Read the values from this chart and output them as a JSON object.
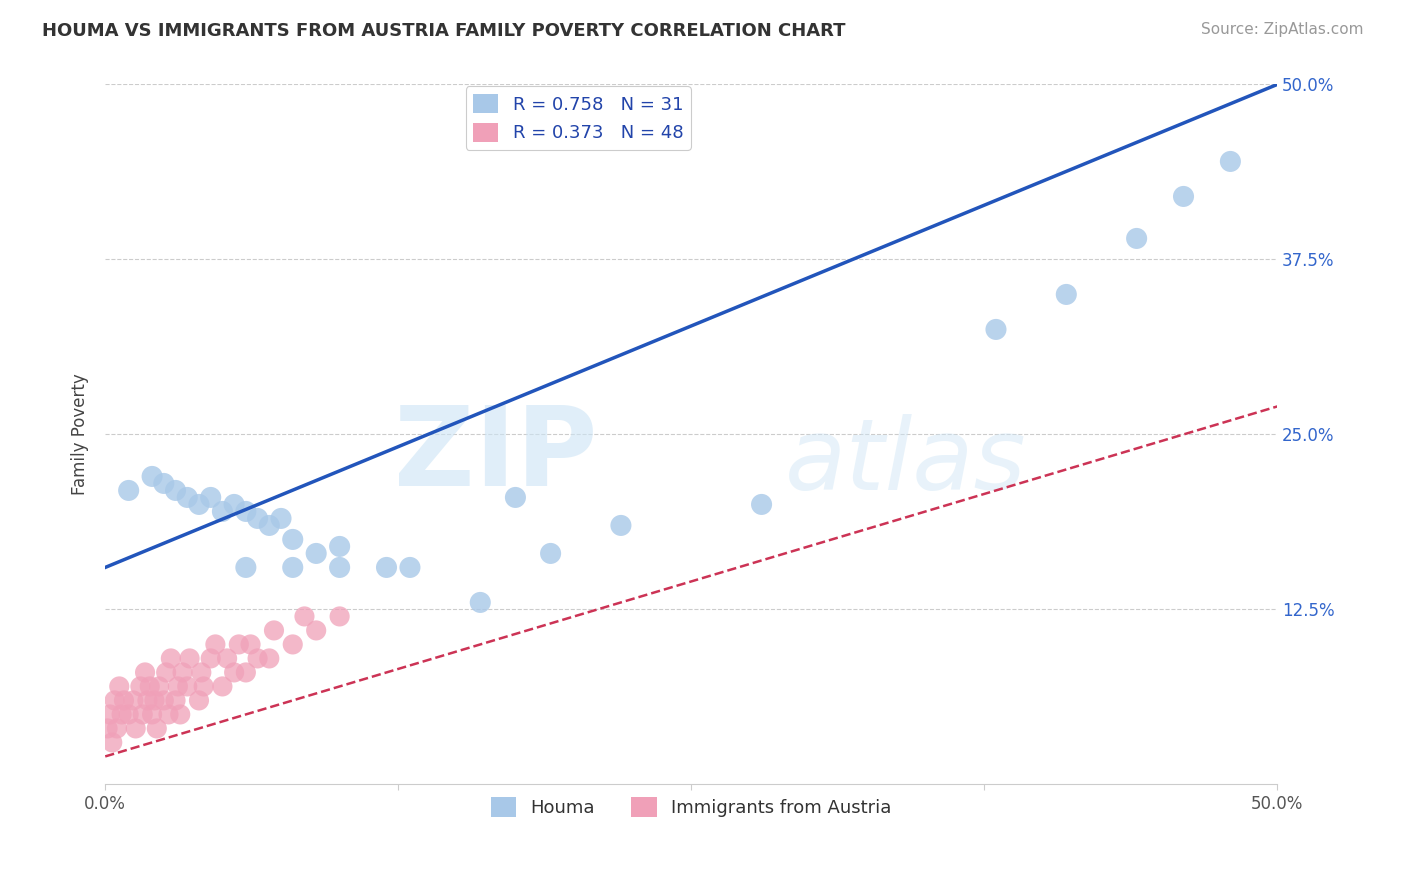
{
  "title": "HOUMA VS IMMIGRANTS FROM AUSTRIA FAMILY POVERTY CORRELATION CHART",
  "source": "Source: ZipAtlas.com",
  "ylabel": "Family Poverty",
  "legend_label1": "Houma",
  "legend_label2": "Immigrants from Austria",
  "R1": 0.758,
  "N1": 31,
  "R2": 0.373,
  "N2": 48,
  "color1": "#a8c8e8",
  "color2": "#f0a0b8",
  "line_color1": "#2255bb",
  "line_color2": "#cc3355",
  "xlim": [
    0.0,
    0.5
  ],
  "ylim": [
    0.0,
    0.5
  ],
  "watermark_zip": "ZIP",
  "watermark_atlas": "atlas",
  "blue_line_x0": 0.0,
  "blue_line_y0": 0.155,
  "blue_line_x1": 0.5,
  "blue_line_y1": 0.5,
  "pink_line_x0": 0.0,
  "pink_line_y0": 0.02,
  "pink_line_x1": 0.5,
  "pink_line_y1": 0.27,
  "blue_x": [
    0.01,
    0.02,
    0.025,
    0.03,
    0.035,
    0.04,
    0.045,
    0.05,
    0.055,
    0.06,
    0.065,
    0.07,
    0.075,
    0.08,
    0.09,
    0.1,
    0.12,
    0.175,
    0.19,
    0.22,
    0.28,
    0.38,
    0.41,
    0.44,
    0.46,
    0.48,
    0.06,
    0.08,
    0.1,
    0.13,
    0.16
  ],
  "blue_y": [
    0.21,
    0.22,
    0.215,
    0.21,
    0.205,
    0.2,
    0.205,
    0.195,
    0.2,
    0.195,
    0.19,
    0.185,
    0.19,
    0.175,
    0.165,
    0.17,
    0.155,
    0.205,
    0.165,
    0.185,
    0.2,
    0.325,
    0.35,
    0.39,
    0.42,
    0.445,
    0.155,
    0.155,
    0.155,
    0.155,
    0.13
  ],
  "pink_x": [
    0.001,
    0.002,
    0.003,
    0.004,
    0.005,
    0.006,
    0.007,
    0.008,
    0.01,
    0.012,
    0.013,
    0.015,
    0.016,
    0.017,
    0.018,
    0.019,
    0.02,
    0.021,
    0.022,
    0.023,
    0.025,
    0.026,
    0.027,
    0.028,
    0.03,
    0.031,
    0.032,
    0.033,
    0.035,
    0.036,
    0.04,
    0.041,
    0.042,
    0.045,
    0.047,
    0.05,
    0.052,
    0.055,
    0.057,
    0.06,
    0.062,
    0.065,
    0.07,
    0.072,
    0.08,
    0.085,
    0.09,
    0.1
  ],
  "pink_y": [
    0.04,
    0.05,
    0.03,
    0.06,
    0.04,
    0.07,
    0.05,
    0.06,
    0.05,
    0.06,
    0.04,
    0.07,
    0.05,
    0.08,
    0.06,
    0.07,
    0.05,
    0.06,
    0.04,
    0.07,
    0.06,
    0.08,
    0.05,
    0.09,
    0.06,
    0.07,
    0.05,
    0.08,
    0.07,
    0.09,
    0.06,
    0.08,
    0.07,
    0.09,
    0.1,
    0.07,
    0.09,
    0.08,
    0.1,
    0.08,
    0.1,
    0.09,
    0.09,
    0.11,
    0.1,
    0.12,
    0.11,
    0.12
  ],
  "title_fontsize": 13,
  "source_fontsize": 11,
  "tick_fontsize": 12,
  "legend_fontsize": 13
}
